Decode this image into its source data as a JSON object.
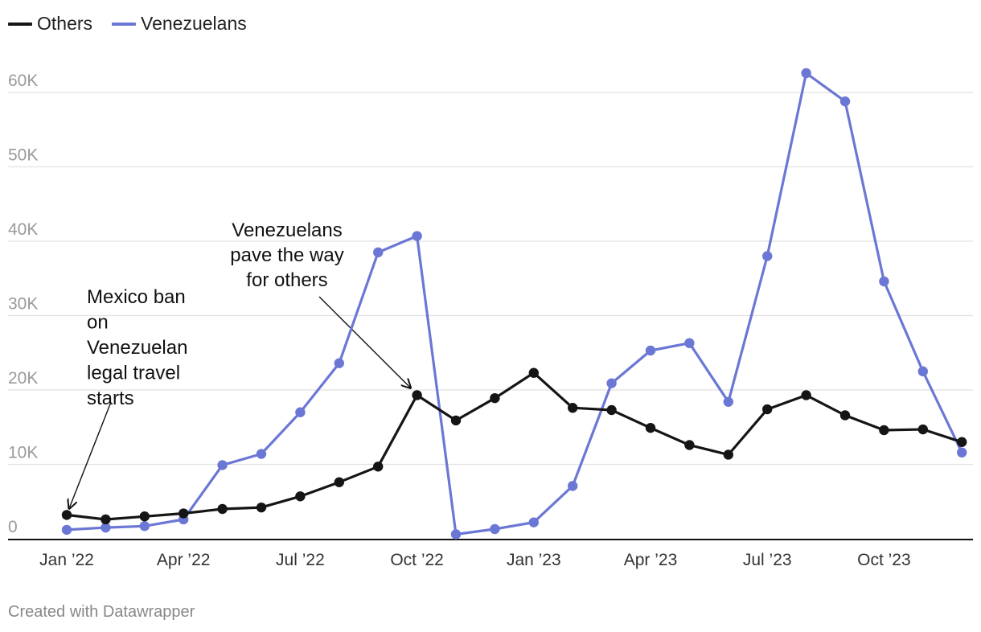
{
  "legend": {
    "others": "Others",
    "venezuelans": "Venezuelans"
  },
  "credit": "Created with Datawrapper",
  "chart_data": {
    "type": "line",
    "title": "",
    "xlabel": "",
    "ylabel": "",
    "ylim": [
      0,
      62000
    ],
    "y_ticks": [
      0,
      10000,
      20000,
      30000,
      40000,
      50000,
      60000
    ],
    "y_tick_labels": [
      "0",
      "10K",
      "20K",
      "30K",
      "40K",
      "50K",
      "60K"
    ],
    "x": [
      "2022-01",
      "2022-02",
      "2022-03",
      "2022-04",
      "2022-05",
      "2022-06",
      "2022-07",
      "2022-08",
      "2022-09",
      "2022-10",
      "2022-11",
      "2022-12",
      "2023-01",
      "2023-02",
      "2023-03",
      "2023-04",
      "2023-05",
      "2023-06",
      "2023-07",
      "2023-08",
      "2023-09",
      "2023-10",
      "2023-11",
      "2023-12"
    ],
    "x_tick_labels": [
      {
        "index": 0,
        "label": "Jan ’22"
      },
      {
        "index": 3,
        "label": "Apr ’22"
      },
      {
        "index": 6,
        "label": "Jul ’22"
      },
      {
        "index": 9,
        "label": "Oct ’22"
      },
      {
        "index": 12,
        "label": "Jan ’23"
      },
      {
        "index": 15,
        "label": "Apr ’23"
      },
      {
        "index": 18,
        "label": "Jul ’23"
      },
      {
        "index": 21,
        "label": "Oct ’23"
      }
    ],
    "series": [
      {
        "name": "Venezuelans",
        "color": "#6b77d4",
        "values": [
          1200,
          1500,
          1700,
          2600,
          9900,
          11400,
          17000,
          23600,
          38500,
          40700,
          600,
          1300,
          2200,
          7100,
          20900,
          25300,
          26300,
          18400,
          38000,
          62600,
          58800,
          34600,
          22500,
          11600
        ]
      },
      {
        "name": "Others",
        "color": "#151515",
        "values": [
          3200,
          2600,
          3000,
          3400,
          4000,
          4200,
          5700,
          7600,
          9700,
          19300,
          15900,
          18900,
          22300,
          17600,
          17300,
          14900,
          12600,
          11300,
          17400,
          19300,
          16600,
          14600,
          14700,
          13000
        ]
      }
    ],
    "annotations": [
      {
        "lines": [
          "Mexico ban",
          "on",
          "Venezuelan",
          "legal travel",
          "starts"
        ],
        "target": {
          "series": "Others",
          "index": 0
        }
      },
      {
        "lines": [
          "Venezuelans",
          "pave the way",
          "for others"
        ],
        "target": {
          "series": "Others",
          "index": 9
        }
      }
    ]
  }
}
